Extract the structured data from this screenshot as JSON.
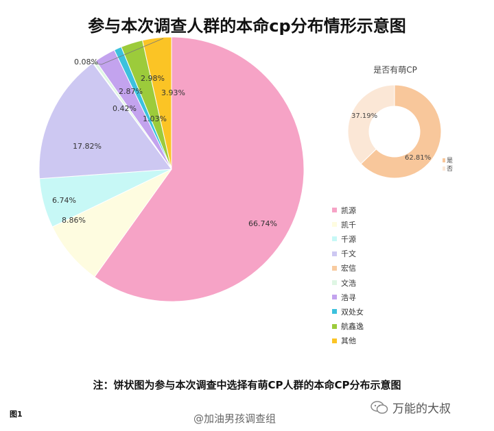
{
  "title": "参与本次调查人群的本命cp分布情形示意图",
  "note": "注：饼状图为参与本次调查中选择有萌CP人群的本命CP分布示意图",
  "figure_label": "图1",
  "watermark_weibo": "@加油男孩调查组",
  "watermark_wechat": "万能的大叔",
  "chart_data": [
    {
      "type": "pie",
      "categories": [
        "凯源",
        "凯千",
        "千源",
        "千文",
        "宏信",
        "文浩",
        "浩寻",
        "双处女",
        "航鑫逸",
        "其他"
      ],
      "values": [
        66.74,
        8.86,
        6.74,
        17.82,
        0.08,
        0.42,
        2.87,
        1.03,
        2.98,
        3.93
      ],
      "labels": [
        "66.74%",
        "8.86%",
        "6.74%",
        "17.82%",
        "0.08%",
        "0.42%",
        "2.87%",
        "1.03%",
        "2.98%",
        "3.93%"
      ],
      "colors": [
        "#f6a3c6",
        "#fefce0",
        "#c7f8f6",
        "#cdc8f2",
        "#f8cba0",
        "#dff6e4",
        "#c3a3ee",
        "#3cc1dd",
        "#9ccb3b",
        "#fbc425"
      ],
      "legend_position": "right"
    },
    {
      "type": "pie",
      "title": "是否有萌CP",
      "categories": [
        "是",
        "否"
      ],
      "values": [
        62.81,
        37.19
      ],
      "labels": [
        "62.81%",
        "37.19%"
      ],
      "colors": [
        "#f8c79b",
        "#fbe7d6"
      ],
      "legend_position": "right"
    }
  ]
}
